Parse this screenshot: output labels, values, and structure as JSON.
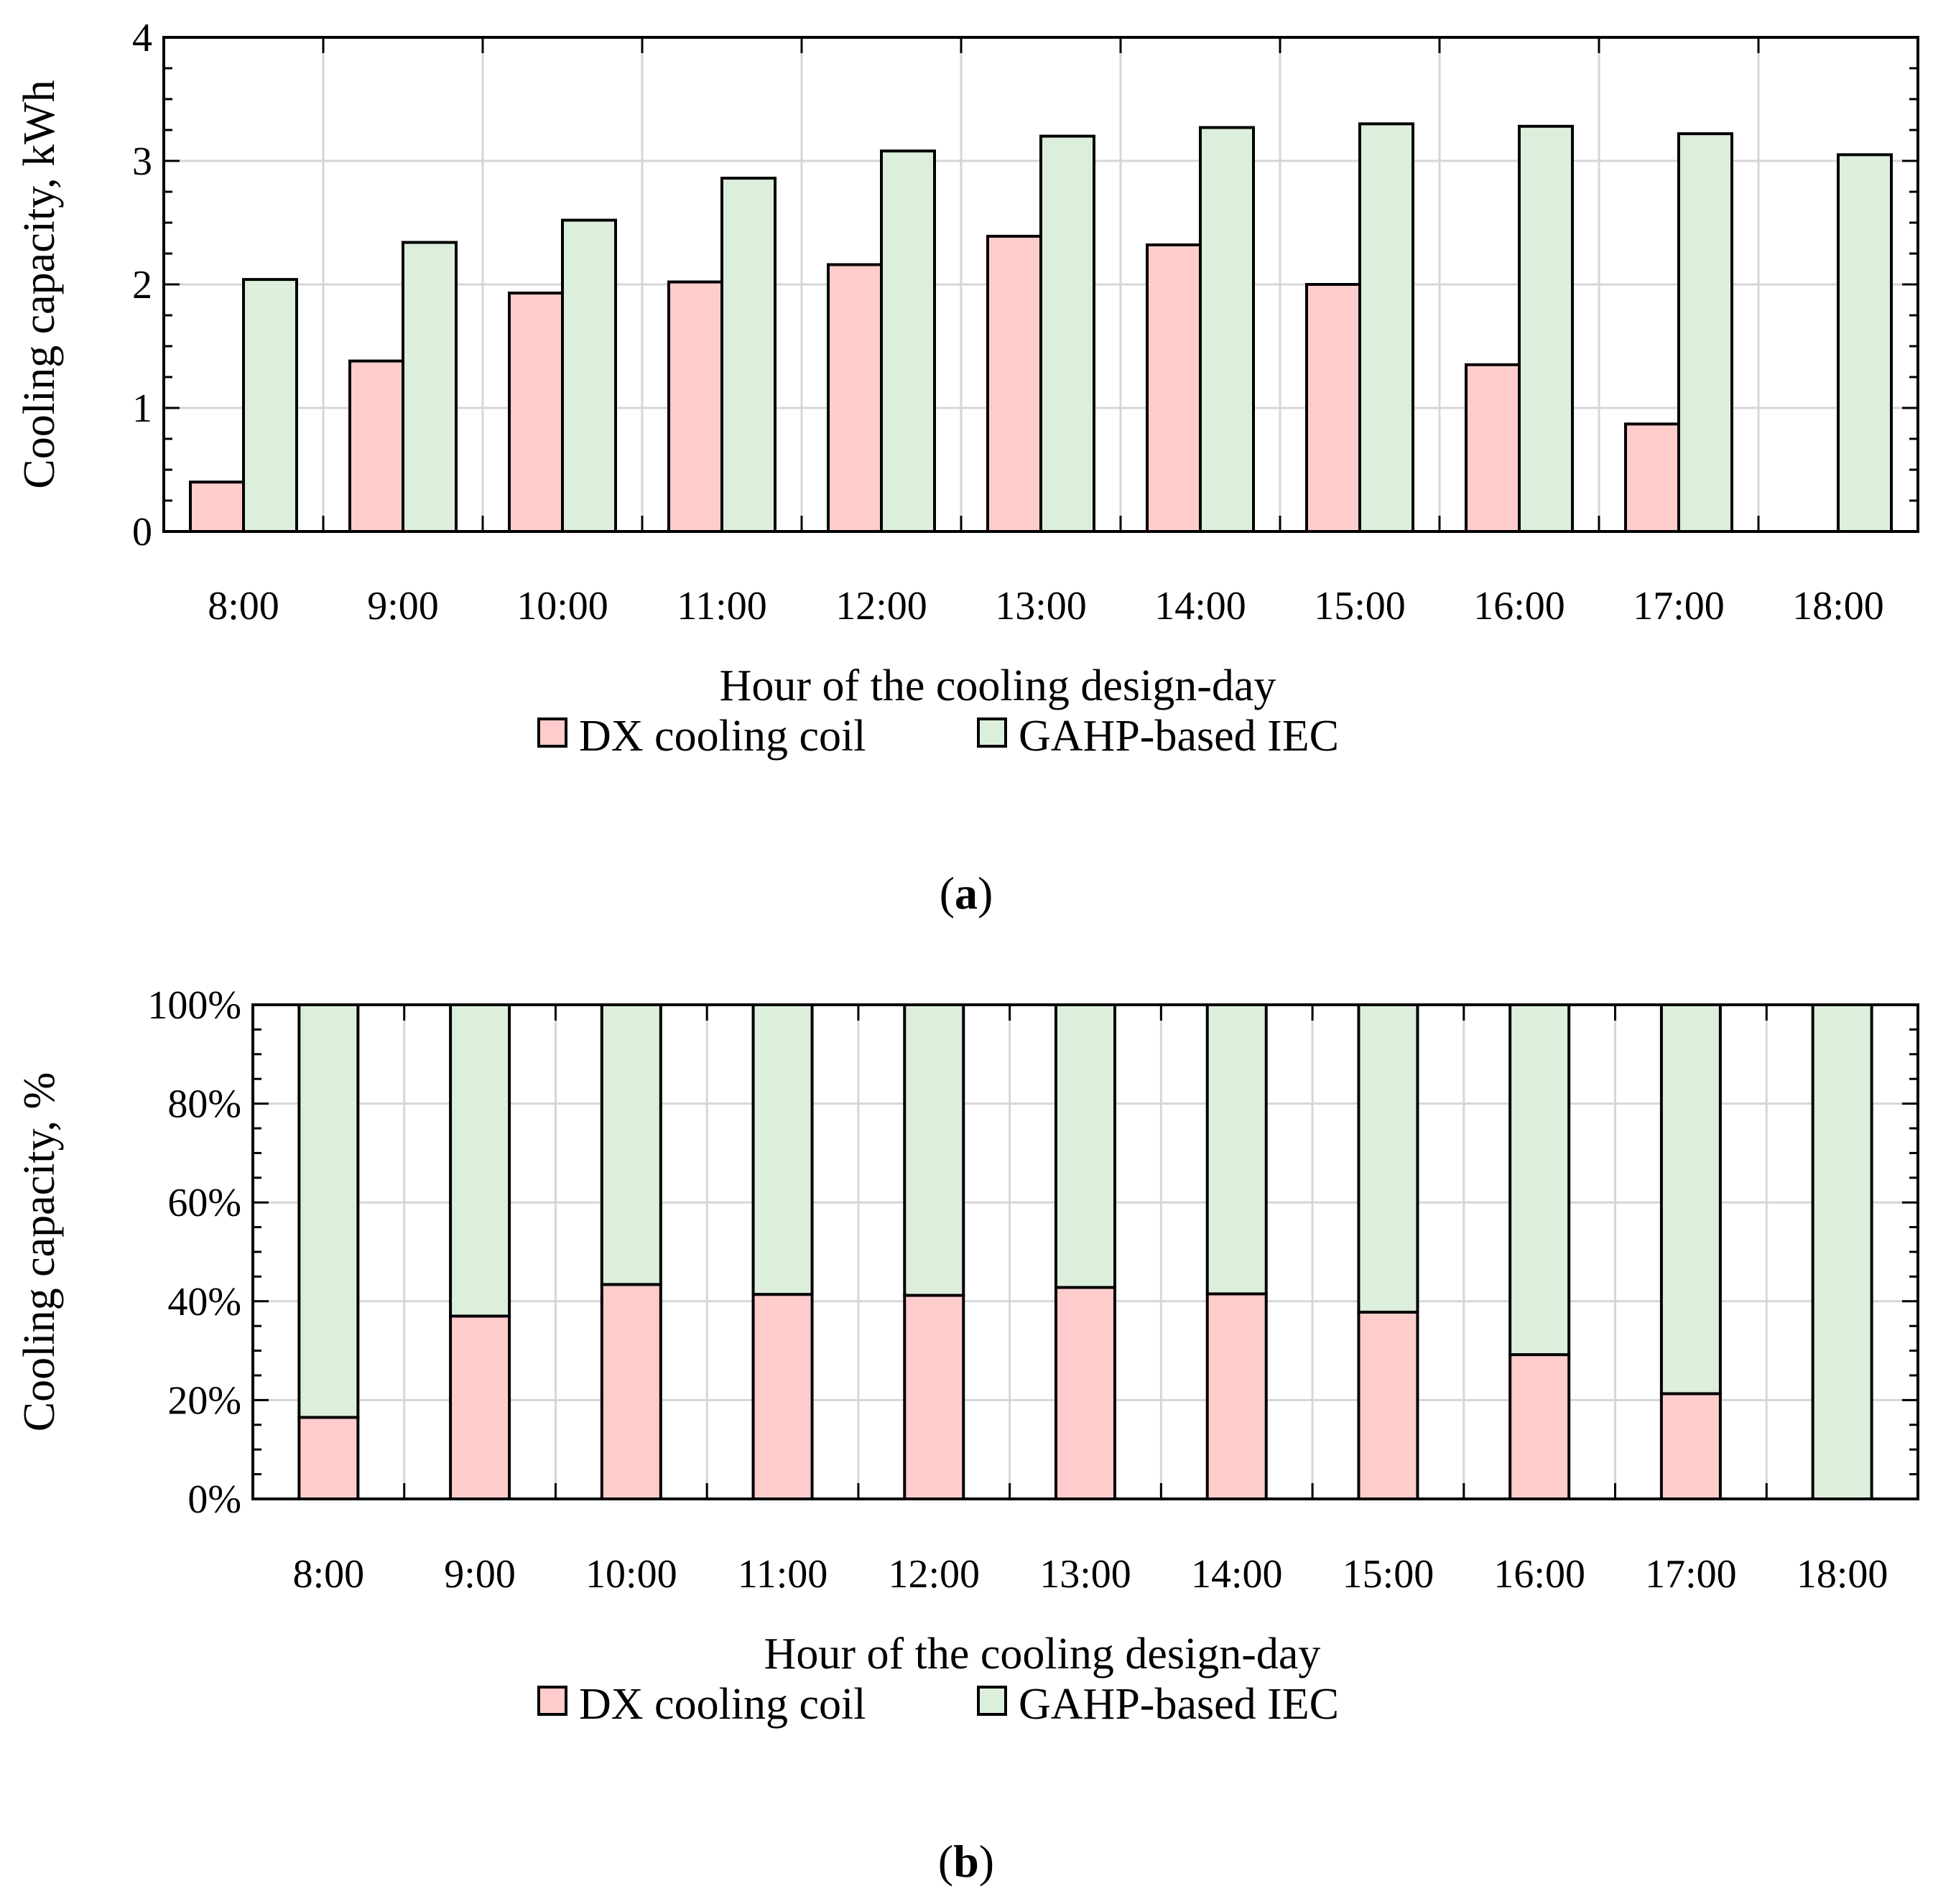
{
  "colors": {
    "dx": "#ffcccc",
    "gahp": "#dcefdc"
  },
  "chart_data": [
    {
      "id": "a",
      "type": "bar",
      "caption_label": "a",
      "xlabel": "Hour of the cooling design-day",
      "ylabel": "Cooling capacity, kWh",
      "ylim": [
        0,
        4
      ],
      "yticks": [
        0,
        1,
        2,
        3,
        4
      ],
      "ytick_labels": [
        "0",
        "1",
        "2",
        "3",
        "4"
      ],
      "grid": true,
      "legend_position": "bottom-center",
      "categories": [
        "8:00",
        "9:00",
        "10:00",
        "11:00",
        "12:00",
        "13:00",
        "14:00",
        "15:00",
        "16:00",
        "17:00",
        "18:00"
      ],
      "series": [
        {
          "name": "DX cooling coil",
          "color_key": "dx",
          "values": [
            0.4,
            1.38,
            1.93,
            2.02,
            2.16,
            2.39,
            2.32,
            2.0,
            1.35,
            0.87,
            0.0
          ]
        },
        {
          "name": "GAHP-based IEC",
          "color_key": "gahp",
          "values": [
            2.04,
            2.34,
            2.52,
            2.86,
            3.08,
            3.2,
            3.27,
            3.3,
            3.28,
            3.22,
            3.05
          ]
        }
      ]
    },
    {
      "id": "b",
      "type": "bar",
      "stacked": true,
      "caption_label": "b",
      "xlabel": "Hour of the cooling design-day",
      "ylabel": "Cooling capacity, %",
      "ylim": [
        0,
        100
      ],
      "yticks": [
        0,
        20,
        40,
        60,
        80,
        100
      ],
      "ytick_labels": [
        "0%",
        "20%",
        "40%",
        "60%",
        "80%",
        "100%"
      ],
      "grid": true,
      "legend_position": "bottom-center",
      "categories": [
        "8:00",
        "9:00",
        "10:00",
        "11:00",
        "12:00",
        "13:00",
        "14:00",
        "15:00",
        "16:00",
        "17:00",
        "18:00"
      ],
      "series": [
        {
          "name": "DX cooling coil",
          "color_key": "dx",
          "values": [
            16.5,
            37.0,
            43.4,
            41.4,
            41.2,
            42.8,
            41.5,
            37.8,
            29.2,
            21.3,
            0.0
          ]
        },
        {
          "name": "GAHP-based IEC",
          "color_key": "gahp",
          "values": [
            83.5,
            63.0,
            56.6,
            58.6,
            58.8,
            57.2,
            58.5,
            62.2,
            70.8,
            78.7,
            100.0
          ]
        }
      ]
    }
  ]
}
